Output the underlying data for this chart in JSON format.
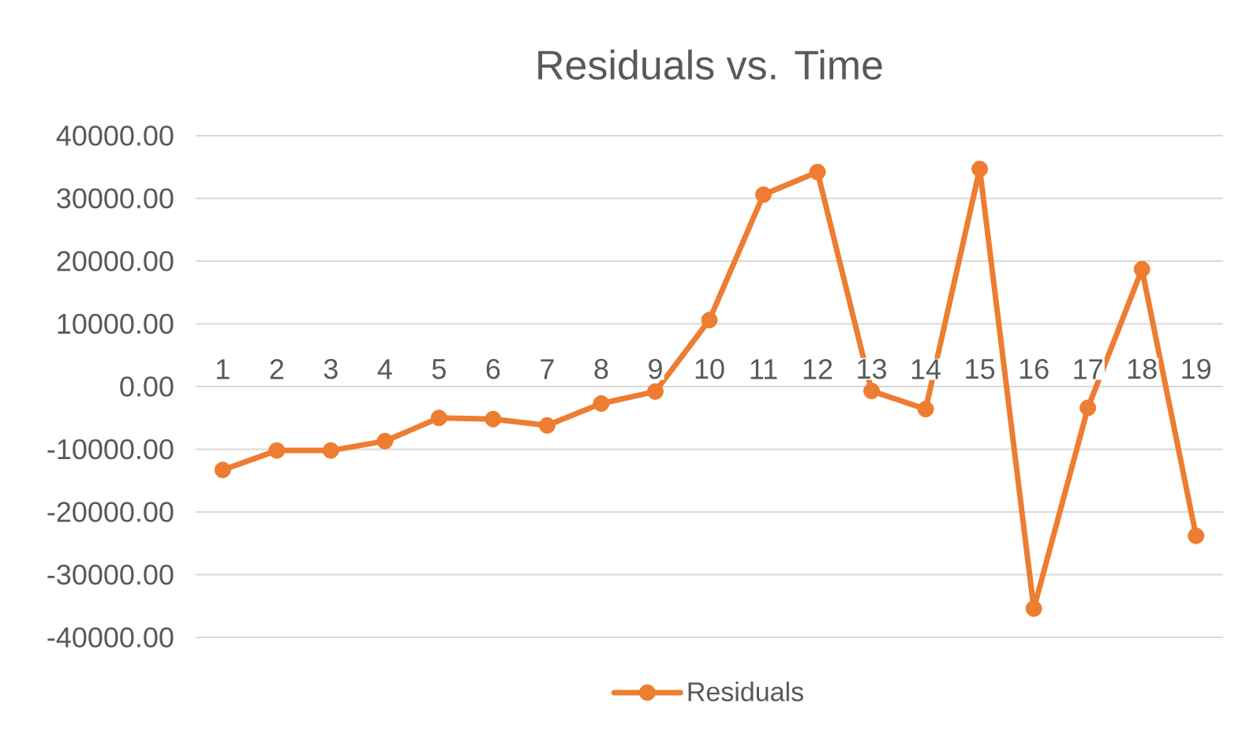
{
  "chart_data": {
    "type": "line",
    "title": "Residuals vs. Time",
    "categories": [
      "1",
      "2",
      "3",
      "4",
      "5",
      "6",
      "7",
      "8",
      "9",
      "10",
      "11",
      "12",
      "13",
      "14",
      "15",
      "16",
      "17",
      "18",
      "19"
    ],
    "series": [
      {
        "name": "Residuals",
        "color": "#ed7d31",
        "values": [
          -13300,
          -10200,
          -10200,
          -8700,
          -5000,
          -5200,
          -6200,
          -2700,
          -800,
          10600,
          30600,
          34200,
          -700,
          -3600,
          34700,
          -35400,
          -3400,
          18700,
          -23800
        ]
      }
    ],
    "ylim": [
      -40000,
      40000
    ],
    "yticks": [
      {
        "value": -40000,
        "label": "-40000.00"
      },
      {
        "value": -30000,
        "label": "-30000.00"
      },
      {
        "value": -20000,
        "label": "-20000.00"
      },
      {
        "value": -10000,
        "label": "-10000.00"
      },
      {
        "value": 0,
        "label": "0.00"
      },
      {
        "value": 10000,
        "label": "10000.00"
      },
      {
        "value": 20000,
        "label": "20000.00"
      },
      {
        "value": 30000,
        "label": "30000.00"
      },
      {
        "value": 40000,
        "label": "40000.00"
      }
    ],
    "grid": "y",
    "legend": "bottom",
    "marker": "circle",
    "line_style": "solid"
  }
}
